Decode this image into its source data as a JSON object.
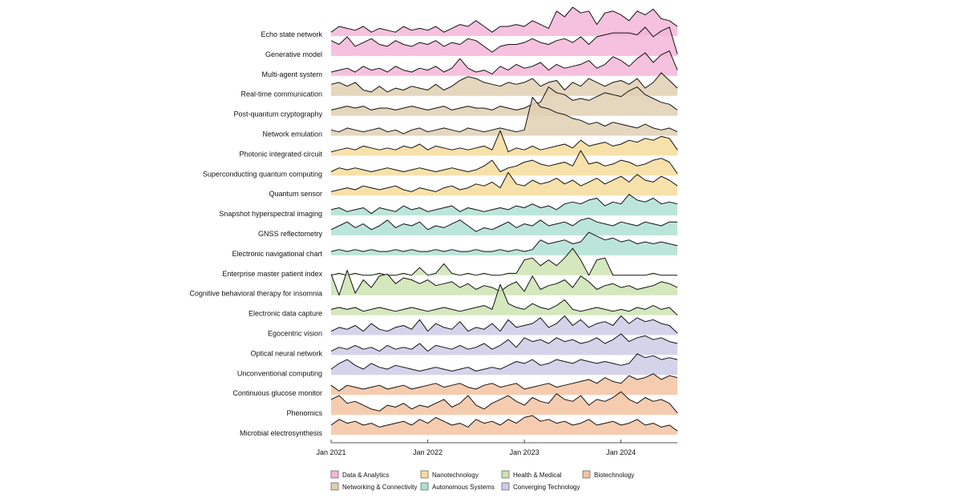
{
  "chart_data": {
    "type": "ridgeline",
    "title": "",
    "xlabel": "",
    "ylabel": "",
    "x_ticks": [
      "Jan 2021",
      "Jan 2022",
      "Jan 2023",
      "Jan 2024"
    ],
    "x_tick_months": [
      0,
      12,
      24,
      36
    ],
    "month_range": [
      0,
      43
    ],
    "value_range": [
      0,
      1
    ],
    "categories_colors": {
      "Data & Analytics": "#f4b6d8",
      "Networking & Connectivity": "#e0cfb3",
      "Nanotechnology": "#f6dc9c",
      "Autonomous Systems": "#b0e0d2",
      "Health & Medical": "#cde3b1",
      "Converging Technology": "#cecbe6",
      "Biotechnology": "#f5c3a2"
    },
    "legend": [
      "Data & Analytics",
      "Nanotechnology",
      "Health & Medical",
      "Biotechnology",
      "Networking & Connectivity",
      "Autonomous Systems",
      "Converging Technology"
    ],
    "series": [
      {
        "name": "Echo state network",
        "category": "Data & Analytics",
        "values": [
          0.2,
          0.5,
          0.4,
          0.3,
          0.5,
          0.2,
          0.4,
          0.3,
          0.2,
          0.5,
          0.3,
          0.4,
          0.3,
          0.5,
          0.2,
          0.4,
          0.6,
          0.5,
          0.8,
          0.5,
          0.2,
          0.5,
          0.5,
          0.6,
          0.5,
          0.8,
          0.6,
          0.4,
          1.3,
          1.0,
          1.5,
          1.2,
          1.3,
          0.6,
          1.2,
          1.3,
          1.1,
          0.8,
          1.3,
          1.1,
          1.4,
          0.9,
          0.8,
          0.5
        ]
      },
      {
        "name": "Generative model",
        "category": "Data & Analytics",
        "values": [
          0.8,
          0.6,
          1.0,
          0.5,
          0.7,
          0.9,
          0.6,
          0.5,
          0.8,
          0.6,
          0.5,
          0.7,
          0.6,
          0.8,
          0.5,
          0.7,
          0.6,
          0.9,
          0.8,
          0.5,
          0.2,
          0.5,
          0.6,
          0.6,
          0.7,
          0.9,
          0.7,
          0.6,
          0.8,
          0.9,
          0.7,
          1.0,
          0.6,
          1.0,
          1.1,
          1.2,
          1.2,
          1.2,
          1.1,
          1.5,
          1.0,
          1.3,
          1.5,
          0.1
        ]
      },
      {
        "name": "Multi-agent system",
        "category": "Data & Analytics",
        "values": [
          0.2,
          0.3,
          0.4,
          0.2,
          0.5,
          0.3,
          0.4,
          0.2,
          0.5,
          0.3,
          0.2,
          0.4,
          0.3,
          0.5,
          0.2,
          0.4,
          0.9,
          0.4,
          0.2,
          0.3,
          0.1,
          0.5,
          0.3,
          0.6,
          0.4,
          0.5,
          0.7,
          0.3,
          0.6,
          0.4,
          0.5,
          0.6,
          0.8,
          0.4,
          0.6,
          1.0,
          0.8,
          0.5,
          0.9,
          1.2,
          0.7,
          1.1,
          1.3,
          0.3
        ]
      },
      {
        "name": "Real-time communication",
        "category": "Networking & Connectivity",
        "values": [
          0.6,
          0.7,
          0.5,
          0.7,
          0.3,
          0.2,
          0.5,
          0.2,
          0.4,
          0.3,
          0.5,
          0.4,
          0.3,
          0.6,
          0.3,
          0.5,
          0.8,
          1.0,
          0.9,
          0.7,
          0.6,
          0.5,
          0.7,
          0.6,
          0.7,
          0.9,
          0.5,
          0.7,
          0.8,
          0.3,
          0.7,
          0.5,
          0.9,
          0.7,
          0.5,
          0.7,
          0.8,
          0.6,
          0.9,
          0.4,
          0.7,
          1.2,
          0.8,
          0.4
        ]
      },
      {
        "name": "Post-quantum cryptography",
        "category": "Networking & Connectivity",
        "values": [
          0.3,
          0.4,
          0.5,
          0.4,
          0.5,
          0.3,
          0.4,
          0.4,
          0.3,
          0.4,
          0.5,
          0.4,
          0.3,
          0.4,
          0.5,
          0.3,
          0.4,
          0.5,
          0.4,
          0.4,
          0.3,
          0.5,
          0.4,
          0.3,
          0.4,
          0.6,
          0.7,
          1.5,
          1.2,
          1.1,
          0.8,
          0.9,
          0.8,
          1.0,
          1.2,
          1.1,
          1.0,
          1.3,
          1.5,
          1.1,
          0.9,
          0.7,
          0.6,
          0.3
        ]
      },
      {
        "name": "Network emulation",
        "category": "Networking & Connectivity",
        "values": [
          0.3,
          0.2,
          0.4,
          0.3,
          0.2,
          0.3,
          0.4,
          0.2,
          0.3,
          0.1,
          0.3,
          0.4,
          0.2,
          0.3,
          0.4,
          0.3,
          0.2,
          0.4,
          0.3,
          0.2,
          0.3,
          0.4,
          0.3,
          0.2,
          0.3,
          2.0,
          1.5,
          1.4,
          1.2,
          1.1,
          0.9,
          0.8,
          0.6,
          0.7,
          0.5,
          0.7,
          0.6,
          0.5,
          0.4,
          0.6,
          0.4,
          0.3,
          0.4,
          0.2
        ]
      },
      {
        "name": "Photonic integrated circuit",
        "category": "Nanotechnology",
        "values": [
          0.2,
          0.3,
          0.4,
          0.3,
          0.5,
          0.4,
          0.3,
          0.4,
          0.3,
          0.5,
          0.4,
          0.6,
          0.3,
          0.5,
          0.4,
          0.3,
          0.4,
          0.3,
          0.4,
          0.5,
          0.3,
          1.3,
          0.2,
          0.4,
          0.3,
          0.5,
          0.3,
          0.4,
          0.5,
          0.6,
          0.4,
          0.8,
          0.5,
          0.6,
          0.7,
          0.5,
          0.6,
          0.8,
          0.7,
          0.9,
          0.8,
          1.0,
          0.9,
          0.3
        ]
      },
      {
        "name": "Superconducting quantum computing",
        "category": "Nanotechnology",
        "values": [
          0.2,
          0.4,
          0.3,
          0.4,
          0.3,
          0.2,
          0.3,
          0.4,
          0.3,
          0.2,
          0.3,
          0.4,
          0.3,
          0.2,
          0.3,
          0.4,
          0.3,
          0.2,
          0.3,
          0.5,
          0.8,
          0.2,
          0.4,
          0.5,
          0.7,
          0.8,
          0.6,
          0.5,
          0.6,
          0.7,
          0.5,
          1.3,
          0.6,
          0.7,
          0.5,
          0.6,
          0.8,
          0.7,
          0.5,
          0.6,
          0.8,
          0.9,
          0.7,
          0.1
        ]
      },
      {
        "name": "Quantum sensor",
        "category": "Nanotechnology",
        "values": [
          0.2,
          0.3,
          0.4,
          0.3,
          0.5,
          0.4,
          0.3,
          0.4,
          0.5,
          0.3,
          0.2,
          0.4,
          0.3,
          0.2,
          0.4,
          0.5,
          0.3,
          0.4,
          0.6,
          0.5,
          0.7,
          0.4,
          1.2,
          0.6,
          0.5,
          0.8,
          0.6,
          0.7,
          0.9,
          0.6,
          0.8,
          0.5,
          0.7,
          0.9,
          0.6,
          0.8,
          1.0,
          0.7,
          1.1,
          0.8,
          0.7,
          1.0,
          0.8,
          0.5
        ]
      },
      {
        "name": "Snapshot hyperspectral imaging",
        "category": "Autonomous Systems",
        "values": [
          0.3,
          0.4,
          0.2,
          0.3,
          0.4,
          0.1,
          0.4,
          0.3,
          0.2,
          0.5,
          0.3,
          0.4,
          0.2,
          0.3,
          0.4,
          0.5,
          0.2,
          0.4,
          0.3,
          0.2,
          0.3,
          0.4,
          0.3,
          0.5,
          0.4,
          0.6,
          0.4,
          0.5,
          0.3,
          0.6,
          0.7,
          0.6,
          0.8,
          0.9,
          0.5,
          0.7,
          0.6,
          1.1,
          0.8,
          0.7,
          0.9,
          0.6,
          0.7,
          0.6
        ]
      },
      {
        "name": "GNSS reflectometry",
        "category": "Autonomous Systems",
        "values": [
          0.3,
          0.5,
          0.7,
          0.4,
          0.6,
          0.3,
          0.5,
          0.8,
          0.4,
          0.6,
          0.5,
          0.7,
          0.3,
          0.5,
          0.4,
          0.6,
          0.8,
          0.5,
          0.2,
          0.4,
          0.3,
          0.5,
          0.7,
          0.4,
          0.6,
          0.5,
          0.8,
          0.5,
          0.6,
          0.7,
          0.5,
          0.8,
          0.9,
          0.7,
          0.6,
          0.5,
          0.7,
          0.6,
          0.5,
          0.7,
          0.6,
          0.5,
          0.7,
          0.7
        ]
      },
      {
        "name": "Electronic navigational chart",
        "category": "Autonomous Systems",
        "values": [
          0.2,
          0.3,
          0.2,
          0.3,
          0.2,
          0.3,
          0.2,
          0.2,
          0.3,
          0.2,
          0.3,
          0.2,
          0.2,
          0.3,
          0.2,
          0.3,
          0.2,
          0.2,
          0.3,
          0.2,
          0.2,
          0.3,
          0.2,
          0.3,
          0.2,
          0.3,
          0.8,
          0.6,
          0.7,
          0.8,
          0.6,
          0.7,
          1.2,
          1.0,
          0.8,
          0.9,
          0.7,
          0.8,
          0.6,
          0.7,
          0.6,
          0.7,
          0.6,
          0.5
        ]
      },
      {
        "name": "Enterprise master patient index",
        "category": "Health & Medical",
        "values": [
          0.0,
          0.1,
          0.0,
          0.1,
          0.0,
          0.0,
          0.1,
          0.0,
          0.0,
          0.1,
          0.0,
          0.4,
          0.0,
          0.1,
          0.6,
          0.1,
          0.0,
          0.1,
          0.0,
          0.1,
          0.0,
          0.0,
          0.1,
          0.1,
          0.8,
          0.9,
          0.5,
          0.8,
          0.5,
          0.9,
          1.4,
          0.8,
          0.0,
          0.8,
          0.9,
          0.0,
          0.0,
          0.0,
          0.0,
          0.0,
          0.1,
          0.0,
          0.0,
          0.0
        ]
      },
      {
        "name": "Cognitive behavioral therapy for insomnia",
        "category": "Health & Medical",
        "values": [
          1.1,
          0.0,
          1.3,
          0.1,
          0.8,
          0.4,
          1.0,
          1.1,
          0.6,
          0.9,
          0.8,
          0.6,
          0.8,
          0.5,
          0.6,
          0.7,
          0.4,
          0.6,
          0.3,
          0.5,
          0.4,
          0.2,
          0.5,
          0.7,
          0.2,
          1.0,
          0.3,
          0.5,
          0.6,
          0.8,
          0.4,
          1.0,
          0.7,
          0.3,
          0.5,
          0.6,
          0.4,
          0.5,
          0.3,
          0.4,
          0.5,
          0.7,
          0.6,
          0.4
        ]
      },
      {
        "name": "Electronic data capture",
        "category": "Health & Medical",
        "values": [
          0.3,
          0.4,
          0.3,
          0.4,
          0.2,
          0.3,
          0.4,
          0.3,
          0.2,
          0.3,
          0.4,
          0.3,
          0.2,
          0.3,
          0.4,
          0.3,
          0.2,
          0.3,
          0.4,
          0.5,
          0.3,
          1.6,
          0.6,
          0.4,
          0.3,
          0.6,
          0.4,
          0.3,
          0.5,
          0.8,
          0.3,
          0.2,
          0.3,
          0.4,
          0.3,
          0.2,
          0.3,
          0.2,
          0.4,
          0.3,
          0.5,
          0.3,
          0.4,
          0.0
        ]
      },
      {
        "name": "Egocentric vision",
        "category": "Converging Technology",
        "values": [
          0.2,
          0.4,
          0.3,
          0.5,
          0.2,
          0.6,
          0.3,
          0.2,
          0.4,
          0.5,
          0.3,
          0.8,
          0.2,
          0.6,
          0.4,
          0.3,
          0.7,
          0.2,
          0.4,
          0.3,
          0.6,
          0.2,
          0.8,
          0.4,
          0.5,
          0.6,
          0.9,
          0.4,
          0.6,
          1.0,
          0.5,
          0.8,
          0.4,
          0.6,
          0.7,
          0.5,
          1.0,
          0.6,
          0.9,
          0.7,
          0.8,
          0.6,
          0.5,
          0.1
        ]
      },
      {
        "name": "Optical neural network",
        "category": "Converging Technology",
        "values": [
          0.2,
          0.4,
          0.3,
          0.5,
          0.3,
          0.4,
          0.2,
          0.5,
          0.3,
          0.4,
          0.3,
          0.6,
          0.2,
          0.5,
          0.4,
          0.3,
          0.5,
          0.3,
          0.4,
          0.6,
          0.3,
          0.5,
          0.8,
          0.4,
          0.9,
          0.7,
          0.8,
          0.6,
          0.9,
          0.7,
          0.8,
          0.6,
          0.7,
          0.9,
          0.6,
          0.8,
          1.1,
          0.7,
          0.9,
          1.0,
          0.8,
          0.9,
          0.7,
          0.6
        ]
      },
      {
        "name": "Unconventional computing",
        "category": "Converging Technology",
        "values": [
          0.3,
          0.6,
          0.8,
          0.5,
          0.3,
          0.6,
          0.4,
          0.3,
          0.5,
          0.4,
          0.3,
          0.2,
          0.3,
          0.4,
          0.3,
          0.2,
          0.3,
          0.4,
          0.2,
          0.3,
          0.4,
          0.3,
          0.5,
          0.7,
          0.6,
          0.8,
          0.5,
          0.6,
          0.8,
          0.7,
          0.6,
          0.8,
          0.7,
          0.6,
          0.7,
          0.6,
          0.5,
          0.6,
          1.1,
          0.9,
          1.0,
          0.8,
          0.9,
          0.8
        ]
      },
      {
        "name": "Continuous glucose monitor",
        "category": "Biotechnology",
        "values": [
          0.5,
          0.2,
          0.5,
          0.4,
          0.3,
          0.4,
          0.5,
          0.3,
          0.4,
          0.5,
          0.3,
          0.4,
          0.5,
          0.6,
          0.4,
          0.5,
          0.6,
          0.4,
          0.3,
          0.5,
          0.6,
          0.4,
          0.5,
          0.6,
          0.3,
          0.4,
          0.5,
          0.6,
          0.4,
          0.5,
          0.6,
          0.7,
          0.8,
          0.6,
          0.9,
          0.7,
          0.6,
          1.0,
          0.8,
          0.9,
          1.1,
          0.8,
          1.0,
          0.9
        ]
      },
      {
        "name": "Phenomics",
        "category": "Biotechnology",
        "values": [
          0.8,
          1.0,
          0.6,
          0.7,
          0.5,
          0.3,
          0.2,
          0.5,
          0.4,
          0.6,
          0.3,
          0.5,
          0.4,
          0.6,
          0.8,
          0.4,
          0.6,
          1.0,
          0.5,
          0.3,
          0.6,
          0.8,
          1.0,
          0.7,
          0.5,
          0.9,
          0.7,
          0.6,
          1.1,
          0.8,
          0.7,
          1.0,
          0.5,
          0.8,
          0.7,
          0.9,
          1.2,
          0.8,
          0.6,
          0.9,
          0.7,
          0.8,
          0.6,
          0.1
        ]
      },
      {
        "name": "Microbial electrosynthesis",
        "category": "Biotechnology",
        "values": [
          0.5,
          0.8,
          0.6,
          0.7,
          0.5,
          0.6,
          0.4,
          0.5,
          0.6,
          0.7,
          0.5,
          0.8,
          0.6,
          0.9,
          0.7,
          0.5,
          0.6,
          0.4,
          0.8,
          0.6,
          0.7,
          0.5,
          0.8,
          0.6,
          0.9,
          1.0,
          0.7,
          0.8,
          0.6,
          0.7,
          0.5,
          0.6,
          0.8,
          0.5,
          0.6,
          0.7,
          0.5,
          0.6,
          0.8,
          0.5,
          0.6,
          0.4,
          0.5,
          0.2
        ]
      }
    ]
  }
}
